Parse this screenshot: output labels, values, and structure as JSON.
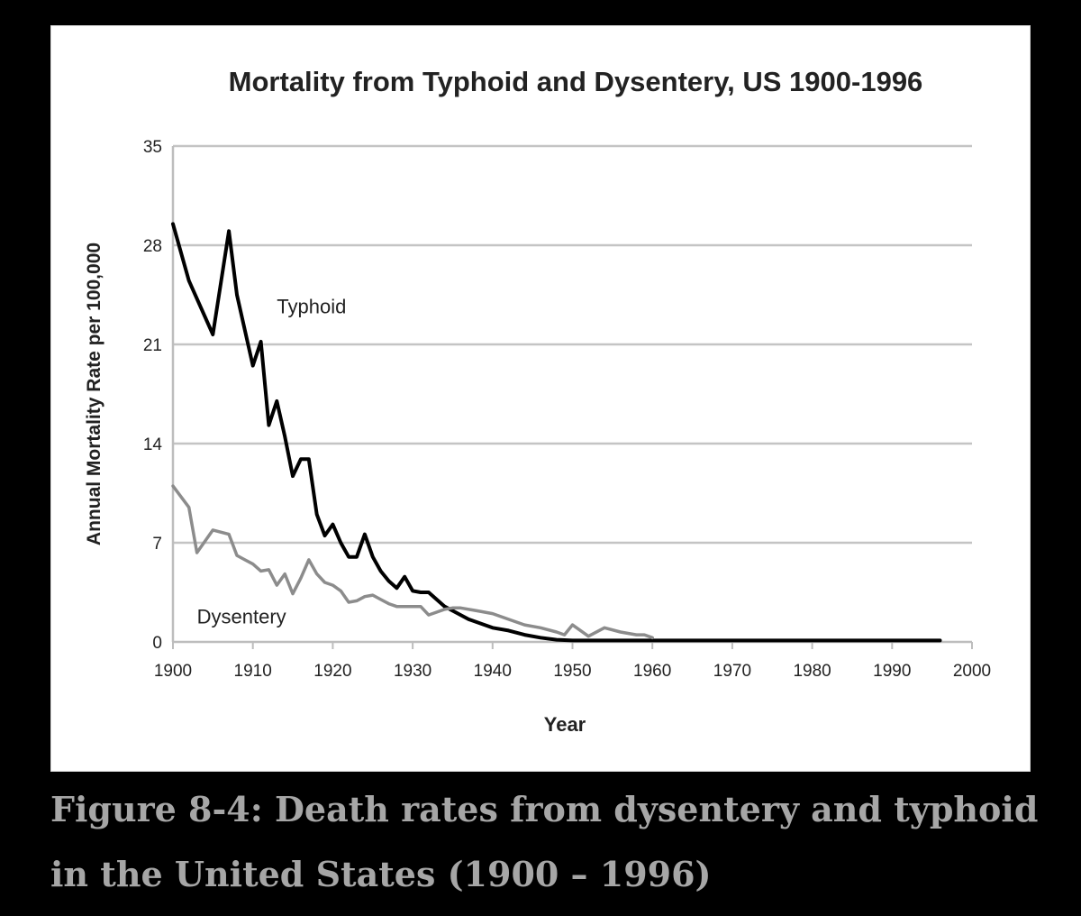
{
  "chart_data": {
    "type": "line",
    "title": "Mortality from Typhoid and Dysentery, US 1900-1996",
    "xlabel": "Year",
    "ylabel": "Annual Mortality Rate per 100,000",
    "xlim": [
      1900,
      2000
    ],
    "ylim": [
      0,
      35
    ],
    "xticks": [
      1900,
      1910,
      1920,
      1930,
      1940,
      1950,
      1960,
      1970,
      1980,
      1990,
      2000
    ],
    "yticks": [
      0,
      7,
      14,
      21,
      28,
      35
    ],
    "grid": true,
    "series": [
      {
        "name": "Typhoid",
        "label": "Typhoid",
        "color": "#000000",
        "x": [
          1900,
          1902,
          1905,
          1907,
          1908,
          1910,
          1911,
          1912,
          1913,
          1914,
          1915,
          1916,
          1917,
          1918,
          1919,
          1920,
          1921,
          1922,
          1923,
          1924,
          1925,
          1926,
          1927,
          1928,
          1929,
          1930,
          1931,
          1932,
          1933,
          1934,
          1935,
          1936,
          1937,
          1938,
          1939,
          1940,
          1942,
          1944,
          1946,
          1948,
          1950,
          1955,
          1960,
          1970,
          1980,
          1990,
          1996
        ],
        "y": [
          29.5,
          25.5,
          21.7,
          29.0,
          24.5,
          19.5,
          21.2,
          15.3,
          17.0,
          14.5,
          11.7,
          12.9,
          12.9,
          9.0,
          7.5,
          8.3,
          7.0,
          6.0,
          6.0,
          7.6,
          6.0,
          5.0,
          4.3,
          3.8,
          4.6,
          3.6,
          3.5,
          3.5,
          3.0,
          2.5,
          2.2,
          1.9,
          1.6,
          1.4,
          1.2,
          1.0,
          0.8,
          0.5,
          0.3,
          0.15,
          0.1,
          0.1,
          0.1,
          0.1,
          0.1,
          0.1,
          0.1
        ]
      },
      {
        "name": "Dysentery",
        "label": "Dysentery",
        "color": "#8c8c8c",
        "x": [
          1900,
          1902,
          1903,
          1905,
          1907,
          1908,
          1909,
          1910,
          1911,
          1912,
          1913,
          1914,
          1915,
          1916,
          1917,
          1918,
          1919,
          1920,
          1921,
          1922,
          1923,
          1924,
          1925,
          1926,
          1927,
          1928,
          1929,
          1930,
          1931,
          1932,
          1933,
          1934,
          1935,
          1936,
          1938,
          1940,
          1942,
          1944,
          1946,
          1948,
          1949,
          1950,
          1952,
          1954,
          1956,
          1958,
          1959,
          1960
        ],
        "y": [
          11.0,
          9.5,
          6.3,
          7.9,
          7.6,
          6.1,
          5.8,
          5.5,
          5.0,
          5.1,
          4.0,
          4.8,
          3.4,
          4.5,
          5.8,
          4.8,
          4.2,
          4.0,
          3.6,
          2.8,
          2.9,
          3.2,
          3.3,
          3.0,
          2.7,
          2.5,
          2.5,
          2.5,
          2.5,
          1.9,
          2.1,
          2.3,
          2.4,
          2.4,
          2.2,
          2.0,
          1.6,
          1.2,
          1.0,
          0.7,
          0.5,
          1.2,
          0.4,
          1.0,
          0.7,
          0.5,
          0.5,
          0.3
        ]
      }
    ]
  },
  "caption": "Figure 8-4: Death rates from dysentery and typhoid in the United States (1900 – 1996)"
}
